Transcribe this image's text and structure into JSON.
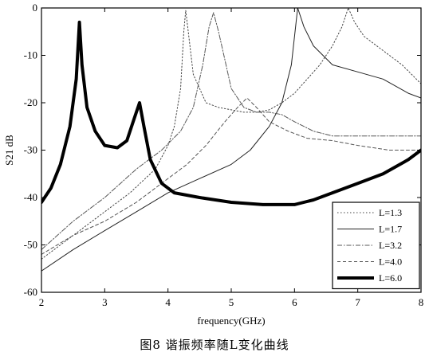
{
  "caption": "图8   谐振频率随L变化曲线",
  "chart_data": {
    "type": "line",
    "title": "",
    "xlabel": "frequency(GHz)",
    "ylabel": "S21 dB",
    "xlim": [
      2,
      8
    ],
    "ylim": [
      -60,
      0
    ],
    "xticks": [
      2,
      3,
      4,
      5,
      6,
      7,
      8
    ],
    "yticks": [
      0,
      -10,
      -20,
      -30,
      -40,
      -50,
      -60
    ],
    "grid": false,
    "legend_position": "bottom-right",
    "series": [
      {
        "name": "L=1.3",
        "style": "dotted",
        "color": "#444444",
        "width": 1,
        "points": [
          [
            2,
            -53
          ],
          [
            2.5,
            -48
          ],
          [
            3,
            -43
          ],
          [
            3.4,
            -39
          ],
          [
            3.8,
            -34
          ],
          [
            4.0,
            -29
          ],
          [
            4.1,
            -25
          ],
          [
            4.2,
            -17
          ],
          [
            4.25,
            -5
          ],
          [
            4.28,
            -0.5
          ],
          [
            4.32,
            -5
          ],
          [
            4.4,
            -14
          ],
          [
            4.6,
            -20
          ],
          [
            4.8,
            -21
          ],
          [
            5.0,
            -21.5
          ],
          [
            5.2,
            -22
          ],
          [
            5.4,
            -22
          ],
          [
            5.6,
            -21.5
          ],
          [
            5.8,
            -20
          ],
          [
            6.0,
            -18
          ],
          [
            6.2,
            -15
          ],
          [
            6.4,
            -12
          ],
          [
            6.6,
            -8
          ],
          [
            6.75,
            -4
          ],
          [
            6.85,
            0
          ],
          [
            6.95,
            -3
          ],
          [
            7.1,
            -6
          ],
          [
            7.4,
            -9
          ],
          [
            7.7,
            -12
          ],
          [
            8,
            -16
          ]
        ]
      },
      {
        "name": "L=1.7",
        "style": "solid",
        "color": "#222222",
        "width": 1,
        "points": [
          [
            2,
            -55.5
          ],
          [
            2.5,
            -51
          ],
          [
            3,
            -47
          ],
          [
            3.5,
            -43
          ],
          [
            4,
            -39
          ],
          [
            4.5,
            -36
          ],
          [
            5,
            -33
          ],
          [
            5.3,
            -30
          ],
          [
            5.6,
            -25
          ],
          [
            5.8,
            -20
          ],
          [
            5.95,
            -12
          ],
          [
            6.05,
            0
          ],
          [
            6.15,
            -4
          ],
          [
            6.3,
            -8
          ],
          [
            6.6,
            -12
          ],
          [
            7,
            -13.5
          ],
          [
            7.4,
            -15
          ],
          [
            7.8,
            -18
          ],
          [
            8,
            -19
          ]
        ]
      },
      {
        "name": "L=3.2",
        "style": "dashdot",
        "color": "#555555",
        "width": 1,
        "points": [
          [
            2,
            -51
          ],
          [
            2.5,
            -45
          ],
          [
            3,
            -40
          ],
          [
            3.5,
            -34
          ],
          [
            3.9,
            -30
          ],
          [
            4.2,
            -26
          ],
          [
            4.4,
            -21
          ],
          [
            4.55,
            -12
          ],
          [
            4.65,
            -4
          ],
          [
            4.72,
            -1
          ],
          [
            4.8,
            -5
          ],
          [
            4.9,
            -11
          ],
          [
            5.0,
            -17
          ],
          [
            5.2,
            -21
          ],
          [
            5.4,
            -22
          ],
          [
            5.6,
            -22
          ],
          [
            5.8,
            -22.5
          ],
          [
            6.0,
            -24
          ],
          [
            6.3,
            -26
          ],
          [
            6.6,
            -27
          ],
          [
            7.0,
            -27
          ],
          [
            7.5,
            -27
          ],
          [
            8,
            -27
          ]
        ]
      },
      {
        "name": "L=4.0",
        "style": "dashed",
        "color": "#555555",
        "width": 1,
        "points": [
          [
            2,
            -52
          ],
          [
            2.5,
            -48
          ],
          [
            3,
            -45
          ],
          [
            3.5,
            -41
          ],
          [
            4,
            -36
          ],
          [
            4.3,
            -33
          ],
          [
            4.6,
            -29
          ],
          [
            4.9,
            -24
          ],
          [
            5.1,
            -21
          ],
          [
            5.25,
            -19
          ],
          [
            5.4,
            -21
          ],
          [
            5.6,
            -24
          ],
          [
            5.9,
            -26
          ],
          [
            6.2,
            -27.5
          ],
          [
            6.6,
            -28
          ],
          [
            7.0,
            -29
          ],
          [
            7.5,
            -30
          ],
          [
            8,
            -30
          ]
        ]
      },
      {
        "name": "L=6.0",
        "style": "solid",
        "color": "#000000",
        "width": 4,
        "points": [
          [
            2,
            -41
          ],
          [
            2.15,
            -38
          ],
          [
            2.3,
            -33
          ],
          [
            2.45,
            -25
          ],
          [
            2.55,
            -15
          ],
          [
            2.6,
            -3
          ],
          [
            2.64,
            -12
          ],
          [
            2.72,
            -21
          ],
          [
            2.85,
            -26
          ],
          [
            3.0,
            -29
          ],
          [
            3.2,
            -29.5
          ],
          [
            3.35,
            -28
          ],
          [
            3.45,
            -24
          ],
          [
            3.55,
            -20
          ],
          [
            3.62,
            -25
          ],
          [
            3.72,
            -32
          ],
          [
            3.9,
            -37
          ],
          [
            4.1,
            -39
          ],
          [
            4.5,
            -40
          ],
          [
            5.0,
            -41
          ],
          [
            5.5,
            -41.5
          ],
          [
            6.0,
            -41.5
          ],
          [
            6.3,
            -40.5
          ],
          [
            6.6,
            -39
          ],
          [
            7.0,
            -37
          ],
          [
            7.4,
            -35
          ],
          [
            7.8,
            -32
          ],
          [
            8,
            -30
          ]
        ]
      }
    ]
  }
}
